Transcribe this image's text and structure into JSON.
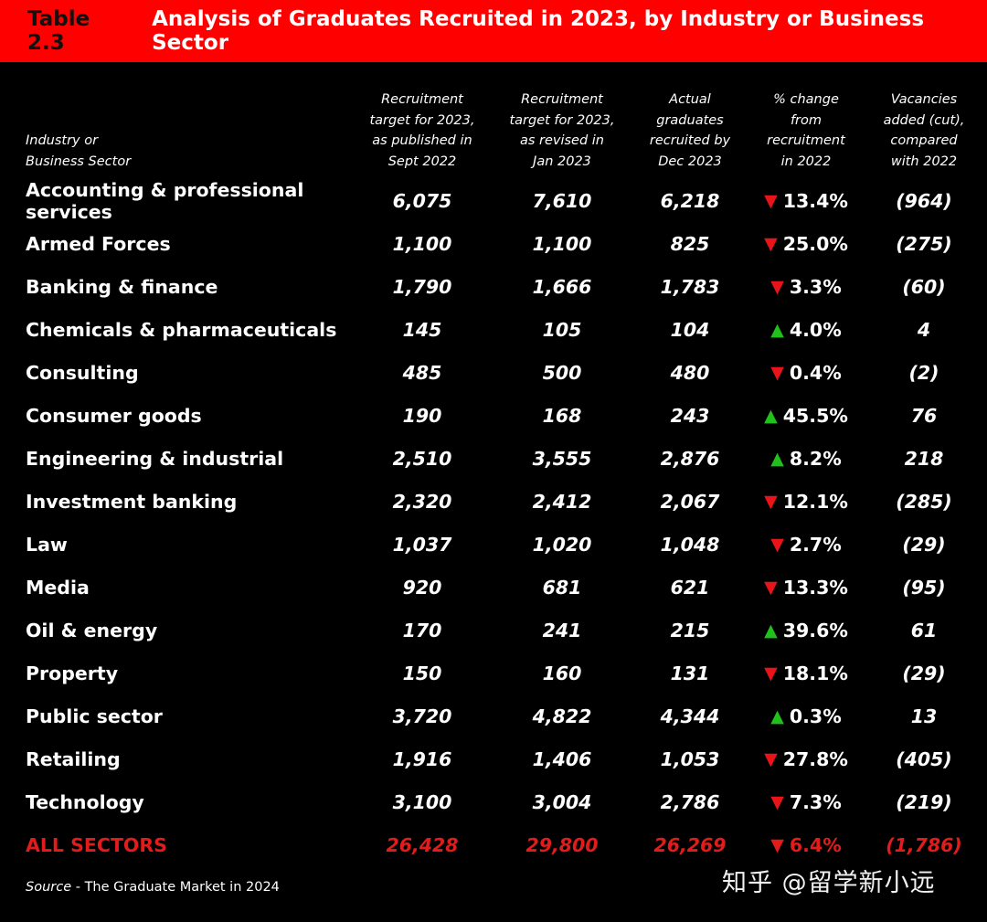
{
  "title": {
    "prefix": "Table 2.3",
    "text": "Analysis of Graduates Recruited in 2023, by Industry or Business Sector"
  },
  "colors": {
    "accent": "#ff0000",
    "down": "#e8141a",
    "up": "#1fc11a",
    "total": "#e21b1b"
  },
  "columns": [
    "Industry or\nBusiness Sector",
    "Recruitment\ntarget for 2023,\nas published in\nSept 2022",
    "Recruitment\ntarget for 2023,\nas revised in\nJan 2023",
    "Actual\ngraduates\nrecruited by\nDec 2023",
    "% change\nfrom\nrecruitment\nin 2022",
    "Vacancies\nadded (cut),\ncompared\nwith 2022"
  ],
  "rows": [
    {
      "sector": "Accounting & professional services",
      "sept": "6,075",
      "jan": "7,610",
      "actual": "6,218",
      "dir": "down",
      "change": "13.4%",
      "vac": "(964)"
    },
    {
      "sector": "Armed Forces",
      "sept": "1,100",
      "jan": "1,100",
      "actual": "825",
      "dir": "down",
      "change": "25.0%",
      "vac": "(275)"
    },
    {
      "sector": "Banking & finance",
      "sept": "1,790",
      "jan": "1,666",
      "actual": "1,783",
      "dir": "down",
      "change": "3.3%",
      "vac": "(60)"
    },
    {
      "sector": "Chemicals & pharmaceuticals",
      "sept": "145",
      "jan": "105",
      "actual": "104",
      "dir": "up",
      "change": "4.0%",
      "vac": "4"
    },
    {
      "sector": "Consulting",
      "sept": "485",
      "jan": "500",
      "actual": "480",
      "dir": "down",
      "change": "0.4%",
      "vac": "(2)"
    },
    {
      "sector": "Consumer goods",
      "sept": "190",
      "jan": "168",
      "actual": "243",
      "dir": "up",
      "change": "45.5%",
      "vac": "76"
    },
    {
      "sector": "Engineering & industrial",
      "sept": "2,510",
      "jan": "3,555",
      "actual": "2,876",
      "dir": "up",
      "change": "8.2%",
      "vac": "218"
    },
    {
      "sector": "Investment banking",
      "sept": "2,320",
      "jan": "2,412",
      "actual": "2,067",
      "dir": "down",
      "change": "12.1%",
      "vac": "(285)"
    },
    {
      "sector": "Law",
      "sept": "1,037",
      "jan": "1,020",
      "actual": "1,048",
      "dir": "down",
      "change": "2.7%",
      "vac": "(29)"
    },
    {
      "sector": "Media",
      "sept": "920",
      "jan": "681",
      "actual": "621",
      "dir": "down",
      "change": "13.3%",
      "vac": "(95)"
    },
    {
      "sector": "Oil & energy",
      "sept": "170",
      "jan": "241",
      "actual": "215",
      "dir": "up",
      "change": "39.6%",
      "vac": "61"
    },
    {
      "sector": "Property",
      "sept": "150",
      "jan": "160",
      "actual": "131",
      "dir": "down",
      "change": "18.1%",
      "vac": "(29)"
    },
    {
      "sector": "Public sector",
      "sept": "3,720",
      "jan": "4,822",
      "actual": "4,344",
      "dir": "up",
      "change": "0.3%",
      "vac": "13"
    },
    {
      "sector": "Retailing",
      "sept": "1,916",
      "jan": "1,406",
      "actual": "1,053",
      "dir": "down",
      "change": "27.8%",
      "vac": "(405)"
    },
    {
      "sector": "Technology",
      "sept": "3,100",
      "jan": "3,004",
      "actual": "2,786",
      "dir": "down",
      "change": "7.3%",
      "vac": "(219)"
    }
  ],
  "total": {
    "sector": "ALL SECTORS",
    "sept": "26,428",
    "jan": "29,800",
    "actual": "26,269",
    "dir": "down",
    "change": "6.4%",
    "vac": "(1,786)"
  },
  "source": {
    "label": "Source",
    "text": " - The Graduate Market in 2024"
  },
  "watermark": "知乎 @留学新小远"
}
